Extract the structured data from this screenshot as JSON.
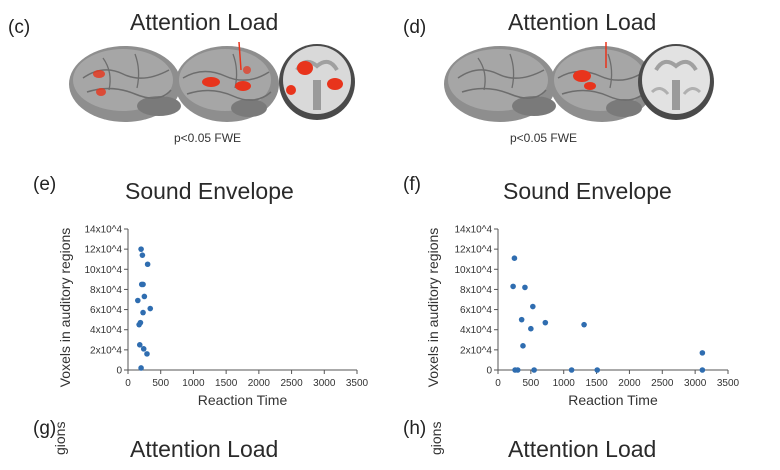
{
  "panels": {
    "c": {
      "label": "(c)",
      "title": "Attention Load",
      "caption": "p<0.05 FWE"
    },
    "d": {
      "label": "(d)",
      "title": "Attention Load",
      "caption": "p<0.05 FWE"
    },
    "g": {
      "label": "(g)",
      "title": "Attention Load",
      "ylabel_fragment": "gions"
    },
    "h": {
      "label": "(h)",
      "title": "Attention Load",
      "ylabel_fragment": "gions"
    }
  },
  "colors": {
    "point": "#2f6db0",
    "axis": "#555555",
    "activation": "#e8341c"
  },
  "chart_data": [
    {
      "panel_label": "(e)",
      "type": "scatter",
      "title": "Sound Envelope",
      "xlabel": "Reaction Time",
      "ylabel": "Voxels in auditory regions",
      "xlim": [
        0,
        3500
      ],
      "ylim": [
        0,
        140000
      ],
      "x_ticks": [
        0,
        500,
        1000,
        1500,
        2000,
        2500,
        3000,
        3500
      ],
      "y_ticks": [
        "0",
        "2x10^4",
        "4x10^4",
        "6x10^4",
        "8x10^4",
        "10x10^4",
        "12x10^4",
        "14x10^4"
      ],
      "grid": false,
      "points": [
        {
          "x": 200,
          "y": 120000
        },
        {
          "x": 220,
          "y": 114000
        },
        {
          "x": 300,
          "y": 105000
        },
        {
          "x": 210,
          "y": 85000
        },
        {
          "x": 230,
          "y": 85000
        },
        {
          "x": 250,
          "y": 73000
        },
        {
          "x": 150,
          "y": 69000
        },
        {
          "x": 340,
          "y": 61000
        },
        {
          "x": 230,
          "y": 57000
        },
        {
          "x": 190,
          "y": 47000
        },
        {
          "x": 170,
          "y": 45000
        },
        {
          "x": 180,
          "y": 25000
        },
        {
          "x": 240,
          "y": 21000
        },
        {
          "x": 290,
          "y": 16000
        },
        {
          "x": 200,
          "y": 2000
        }
      ]
    },
    {
      "panel_label": "(f)",
      "type": "scatter",
      "title": "Sound Envelope",
      "xlabel": "Reaction Time",
      "ylabel": "Voxels in auditory regions",
      "xlim": [
        0,
        3500
      ],
      "ylim": [
        0,
        140000
      ],
      "x_ticks": [
        0,
        500,
        1000,
        1500,
        2000,
        2500,
        3000,
        3500
      ],
      "y_ticks": [
        "0",
        "2x10^4",
        "4x10^4",
        "6x10^4",
        "8x10^4",
        "10x10^4",
        "12x10^4",
        "14x10^4"
      ],
      "grid": false,
      "points": [
        {
          "x": 250,
          "y": 111000
        },
        {
          "x": 230,
          "y": 83000
        },
        {
          "x": 410,
          "y": 82000
        },
        {
          "x": 530,
          "y": 63000
        },
        {
          "x": 720,
          "y": 47000
        },
        {
          "x": 360,
          "y": 50000
        },
        {
          "x": 500,
          "y": 41000
        },
        {
          "x": 1310,
          "y": 45000
        },
        {
          "x": 380,
          "y": 24000
        },
        {
          "x": 3110,
          "y": 17000
        },
        {
          "x": 260,
          "y": 0
        },
        {
          "x": 300,
          "y": 0
        },
        {
          "x": 550,
          "y": 0
        },
        {
          "x": 1120,
          "y": 0
        },
        {
          "x": 1510,
          "y": 0
        },
        {
          "x": 3110,
          "y": 0
        }
      ]
    }
  ]
}
